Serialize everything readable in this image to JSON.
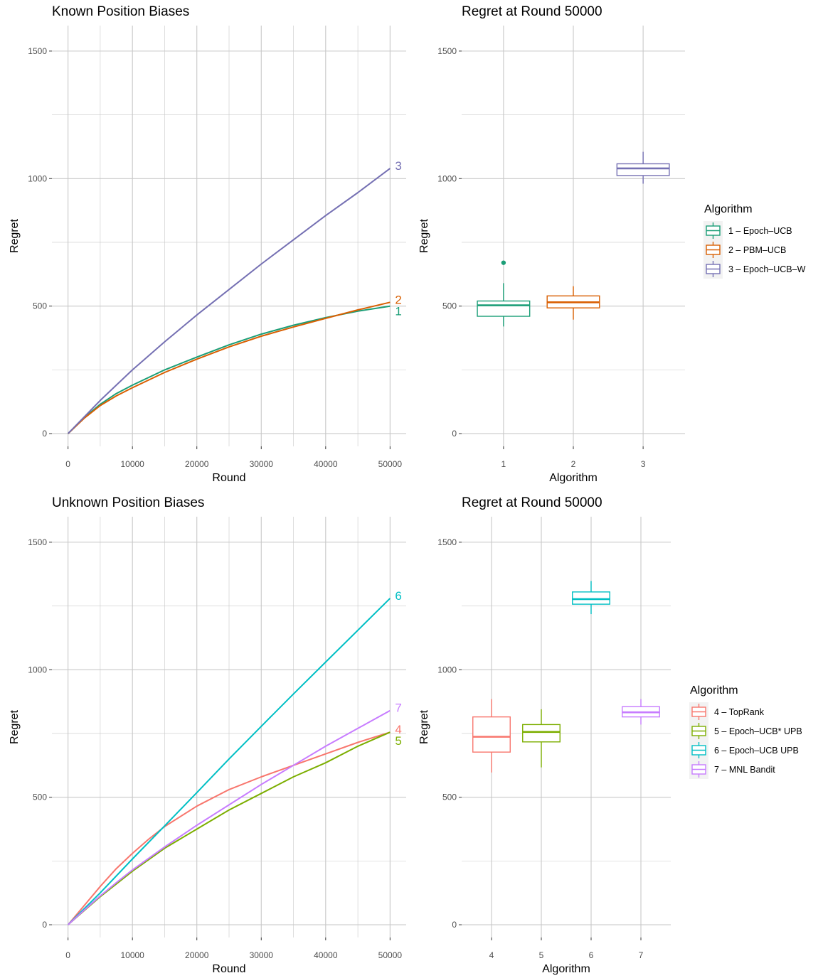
{
  "colors": {
    "1": "#1b9e77",
    "2": "#d95f02",
    "3": "#7570b3",
    "4": "#f8766d",
    "5": "#7cae00",
    "6": "#00bfc4",
    "7": "#c77cff"
  },
  "chart_data": [
    {
      "type": "line",
      "title": "Known Position Biases",
      "xlabel": "Round",
      "ylabel": "Regret",
      "xlim": [
        -2500,
        52500
      ],
      "ylim": [
        -50,
        1600
      ],
      "xticks": [
        0,
        10000,
        20000,
        30000,
        40000,
        50000
      ],
      "xtick_labels": [
        "0",
        "10000",
        "20000",
        "30000",
        "40000",
        "50000"
      ],
      "yticks": [
        0,
        500,
        1000,
        1500
      ],
      "ytick_labels": [
        "0",
        "500",
        "1000",
        "1500"
      ],
      "grid": true,
      "series": [
        {
          "name": "1",
          "color": "#1b9e77",
          "x": [
            0,
            2500,
            5000,
            7500,
            10000,
            15000,
            20000,
            25000,
            30000,
            35000,
            40000,
            45000,
            50000
          ],
          "y": [
            0,
            62,
            115,
            157,
            190,
            250,
            300,
            348,
            390,
            425,
            455,
            480,
            500
          ]
        },
        {
          "name": "2",
          "color": "#d95f02",
          "x": [
            0,
            2500,
            5000,
            7500,
            10000,
            15000,
            20000,
            25000,
            30000,
            35000,
            40000,
            45000,
            50000
          ],
          "y": [
            0,
            60,
            110,
            148,
            180,
            240,
            292,
            340,
            382,
            418,
            452,
            485,
            515
          ]
        },
        {
          "name": "3",
          "color": "#7570b3",
          "x": [
            0,
            2500,
            5000,
            7500,
            10000,
            15000,
            20000,
            25000,
            30000,
            35000,
            40000,
            45000,
            50000
          ],
          "y": [
            0,
            65,
            130,
            190,
            250,
            360,
            465,
            565,
            665,
            760,
            855,
            945,
            1040
          ]
        }
      ]
    },
    {
      "type": "box",
      "title": "Regret at Round 50000",
      "xlabel": "Algorithm",
      "ylabel": "Regret",
      "ylim": [
        -50,
        1600
      ],
      "yticks": [
        0,
        500,
        1000,
        1500
      ],
      "ytick_labels": [
        "0",
        "500",
        "1000",
        "1500"
      ],
      "categories": [
        "1",
        "2",
        "3"
      ],
      "boxes": [
        {
          "cat": "1",
          "min": 420,
          "q1": 460,
          "median": 503,
          "q3": 520,
          "max": 590,
          "outliers": [
            670
          ]
        },
        {
          "cat": "2",
          "min": 447,
          "q1": 493,
          "median": 515,
          "q3": 540,
          "max": 578,
          "outliers": []
        },
        {
          "cat": "3",
          "min": 980,
          "q1": 1012,
          "median": 1040,
          "q3": 1058,
          "max": 1105,
          "outliers": []
        }
      ],
      "legend": {
        "title": "Algorithm",
        "position": "right",
        "entries": [
          {
            "key": "1",
            "label": "1 – Epoch–UCB"
          },
          {
            "key": "2",
            "label": "2 – PBM–UCB"
          },
          {
            "key": "3",
            "label": "3 – Epoch–UCB–W"
          }
        ]
      }
    },
    {
      "type": "line",
      "title": "Unknown Position Biases",
      "xlabel": "Round",
      "ylabel": "Regret",
      "xlim": [
        -2500,
        52500
      ],
      "ylim": [
        -50,
        1600
      ],
      "xticks": [
        0,
        10000,
        20000,
        30000,
        40000,
        50000
      ],
      "xtick_labels": [
        "0",
        "10000",
        "20000",
        "30000",
        "40000",
        "50000"
      ],
      "yticks": [
        0,
        500,
        1000,
        1500
      ],
      "ytick_labels": [
        "0",
        "500",
        "1000",
        "1500"
      ],
      "grid": true,
      "series": [
        {
          "name": "4",
          "color": "#f8766d",
          "x": [
            0,
            2500,
            5000,
            7500,
            10000,
            12500,
            15000,
            20000,
            25000,
            30000,
            35000,
            40000,
            45000,
            50000
          ],
          "y": [
            0,
            75,
            150,
            220,
            280,
            335,
            385,
            465,
            530,
            580,
            625,
            670,
            715,
            755
          ]
        },
        {
          "name": "5",
          "color": "#7cae00",
          "x": [
            0,
            2500,
            5000,
            7500,
            10000,
            15000,
            20000,
            25000,
            30000,
            35000,
            40000,
            45000,
            50000
          ],
          "y": [
            0,
            55,
            110,
            160,
            210,
            300,
            375,
            450,
            515,
            580,
            635,
            700,
            755
          ]
        },
        {
          "name": "6",
          "color": "#00bfc4",
          "x": [
            0,
            5000,
            10000,
            15000,
            20000,
            25000,
            30000,
            35000,
            40000,
            45000,
            50000
          ],
          "y": [
            0,
            125,
            258,
            388,
            518,
            650,
            778,
            905,
            1030,
            1155,
            1280
          ]
        },
        {
          "name": "7",
          "color": "#c77cff",
          "x": [
            0,
            2500,
            5000,
            7500,
            10000,
            15000,
            20000,
            25000,
            30000,
            35000,
            40000,
            45000,
            50000
          ],
          "y": [
            0,
            57,
            113,
            165,
            215,
            305,
            390,
            470,
            550,
            625,
            700,
            770,
            840
          ]
        }
      ]
    },
    {
      "type": "box",
      "title": "Regret at Round 50000",
      "xlabel": "Algorithm",
      "ylabel": "Regret",
      "ylim": [
        -50,
        1600
      ],
      "yticks": [
        0,
        500,
        1000,
        1500
      ],
      "ytick_labels": [
        "0",
        "500",
        "1000",
        "1500"
      ],
      "categories": [
        "4",
        "5",
        "6",
        "7"
      ],
      "boxes": [
        {
          "cat": "4",
          "min": 597,
          "q1": 677,
          "median": 737,
          "q3": 815,
          "max": 885,
          "outliers": []
        },
        {
          "cat": "5",
          "min": 617,
          "q1": 717,
          "median": 756,
          "q3": 785,
          "max": 845,
          "outliers": []
        },
        {
          "cat": "6",
          "min": 1218,
          "q1": 1257,
          "median": 1277,
          "q3": 1305,
          "max": 1348,
          "outliers": []
        },
        {
          "cat": "7",
          "min": 785,
          "q1": 815,
          "median": 833,
          "q3": 855,
          "max": 885,
          "outliers": []
        }
      ],
      "legend": {
        "title": "Algorithm",
        "position": "right",
        "entries": [
          {
            "key": "4",
            "label": "4 – TopRank"
          },
          {
            "key": "5",
            "label": "5 – Epoch–UCB* UPB"
          },
          {
            "key": "6",
            "label": "6 – Epoch–UCB UPB"
          },
          {
            "key": "7",
            "label": "7 – MNL Bandit"
          }
        ]
      }
    }
  ]
}
